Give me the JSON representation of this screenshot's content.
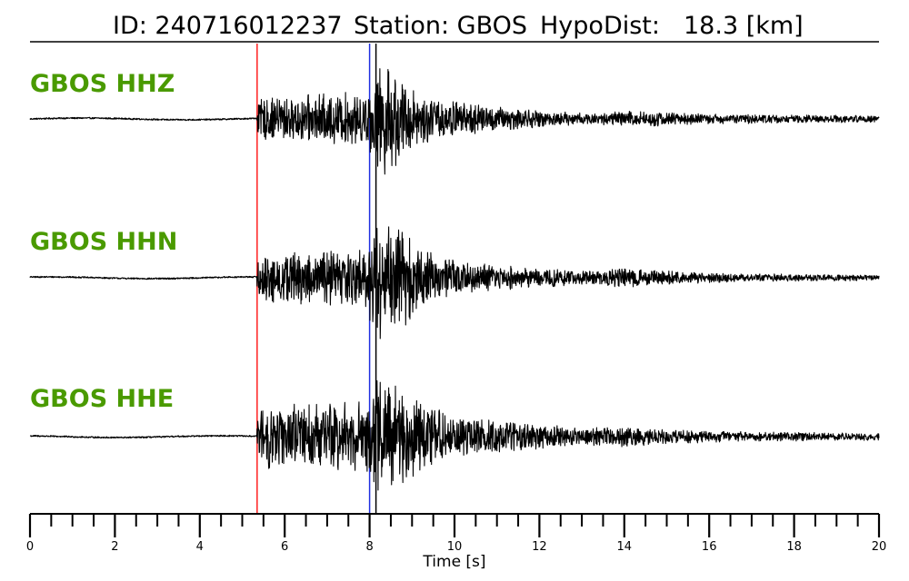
{
  "header": {
    "id_label": "ID: 240716012237",
    "station_label": "Station: GBOS",
    "hypodist_label": "HypoDist:",
    "hypodist_value": "18.3 [km]"
  },
  "colors": {
    "trace": "#000000",
    "label": "#4a9a00",
    "p_pick": "#ff2020",
    "s_pick": "#2030e0",
    "other_pick": "#000000"
  },
  "chart_data": {
    "type": "line",
    "xlabel": "Time [s]",
    "xlim": [
      0,
      20
    ],
    "major_ticks": [
      0,
      2,
      4,
      6,
      8,
      10,
      12,
      14,
      16,
      18,
      20
    ],
    "minor_tick_step": 0.5,
    "picks": [
      {
        "time": 5.35,
        "color": "#ff2020"
      },
      {
        "time": 8.0,
        "color": "#2030e0"
      },
      {
        "time": 8.15,
        "color": "#000000"
      }
    ],
    "traces": [
      {
        "name": "GBOS HHZ",
        "envelope": [
          [
            0,
            0.02
          ],
          [
            5.3,
            0.03
          ],
          [
            5.4,
            0.3
          ],
          [
            7.9,
            0.4
          ],
          [
            8.3,
            0.85
          ],
          [
            9.2,
            0.35
          ],
          [
            10.5,
            0.22
          ],
          [
            12.0,
            0.12
          ],
          [
            13.2,
            0.08
          ],
          [
            14.0,
            0.12
          ],
          [
            15.0,
            0.1
          ],
          [
            16.0,
            0.07
          ],
          [
            18.0,
            0.06
          ],
          [
            20.0,
            0.05
          ]
        ]
      },
      {
        "name": "GBOS HHN",
        "envelope": [
          [
            0,
            0.02
          ],
          [
            5.3,
            0.03
          ],
          [
            5.4,
            0.35
          ],
          [
            7.9,
            0.45
          ],
          [
            8.2,
            0.9
          ],
          [
            8.8,
            0.7
          ],
          [
            9.6,
            0.3
          ],
          [
            11.0,
            0.18
          ],
          [
            12.5,
            0.12
          ],
          [
            13.2,
            0.1
          ],
          [
            14.0,
            0.14
          ],
          [
            15.0,
            0.1
          ],
          [
            16.5,
            0.06
          ],
          [
            20.0,
            0.04
          ]
        ]
      },
      {
        "name": "GBOS HHE",
        "envelope": [
          [
            0,
            0.02
          ],
          [
            5.3,
            0.03
          ],
          [
            5.4,
            0.45
          ],
          [
            7.9,
            0.5
          ],
          [
            8.2,
            0.9
          ],
          [
            8.8,
            0.65
          ],
          [
            10.0,
            0.28
          ],
          [
            12.0,
            0.18
          ],
          [
            13.0,
            0.12
          ],
          [
            14.0,
            0.16
          ],
          [
            15.0,
            0.1
          ],
          [
            17.0,
            0.07
          ],
          [
            20.0,
            0.05
          ]
        ]
      }
    ]
  }
}
